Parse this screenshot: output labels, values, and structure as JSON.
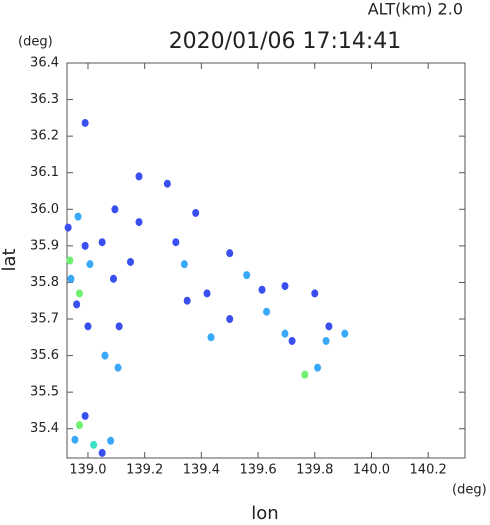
{
  "chart_data": {
    "type": "scatter",
    "title": "2020/01/06 17:14:41",
    "annotation": "ALT(km)  2.0",
    "y_unit": "(deg)",
    "x_unit": "(deg)",
    "xlabel": "lon",
    "ylabel": "lat",
    "xlim": [
      138.926,
      140.33
    ],
    "ylim": [
      35.32,
      36.4
    ],
    "grid": false,
    "xticks": [
      {
        "value": 139,
        "label": "139.0"
      },
      139.2,
      139.4,
      139.6,
      139.8,
      {
        "value": 140,
        "label": "140.0"
      },
      140.2
    ],
    "yticks": [
      35.4,
      35.5,
      35.6,
      35.7,
      35.8,
      35.9,
      {
        "value": 36,
        "label": "36.0"
      },
      36.1,
      36.2,
      36.3,
      36.4
    ],
    "series": [
      {
        "color": "#3a4ff0",
        "x": [
          138.99,
          138.93,
          138.99,
          138.96,
          139.0,
          139.05,
          139.09,
          139.095,
          139.18,
          139.28,
          139.31,
          139.38,
          139.35,
          139.42,
          139.5,
          139.614,
          139.5,
          139.695,
          139.72,
          139.8,
          139.85,
          138.99,
          139.05,
          139.11,
          139.15,
          139.18
        ],
        "values": [
          36.236,
          35.95,
          35.9,
          35.74,
          35.68,
          35.91,
          35.81,
          36.0,
          35.965,
          36.07,
          35.91,
          35.99,
          35.75,
          35.77,
          35.88,
          35.78,
          35.7,
          35.79,
          35.64,
          35.77,
          35.68,
          35.435,
          35.334,
          35.68,
          35.856,
          36.09
        ]
      },
      {
        "color": "#38a8f8",
        "x": [
          138.965,
          139.007,
          138.94,
          139.06,
          139.106,
          139.34,
          139.56,
          139.63,
          139.695,
          139.84,
          139.906,
          139.81,
          139.434,
          138.954,
          139.08
        ],
        "values": [
          35.98,
          35.85,
          35.81,
          35.6,
          35.567,
          35.85,
          35.82,
          35.72,
          35.66,
          35.64,
          35.66,
          35.567,
          35.65,
          35.37,
          35.367
        ]
      },
      {
        "color": "#38e0c8",
        "x": [
          139.02
        ],
        "values": [
          35.356
        ]
      },
      {
        "color": "#70f070",
        "x": [
          138.936,
          138.97,
          139.765,
          138.97
        ],
        "values": [
          35.86,
          35.77,
          35.548,
          35.41
        ]
      }
    ]
  }
}
